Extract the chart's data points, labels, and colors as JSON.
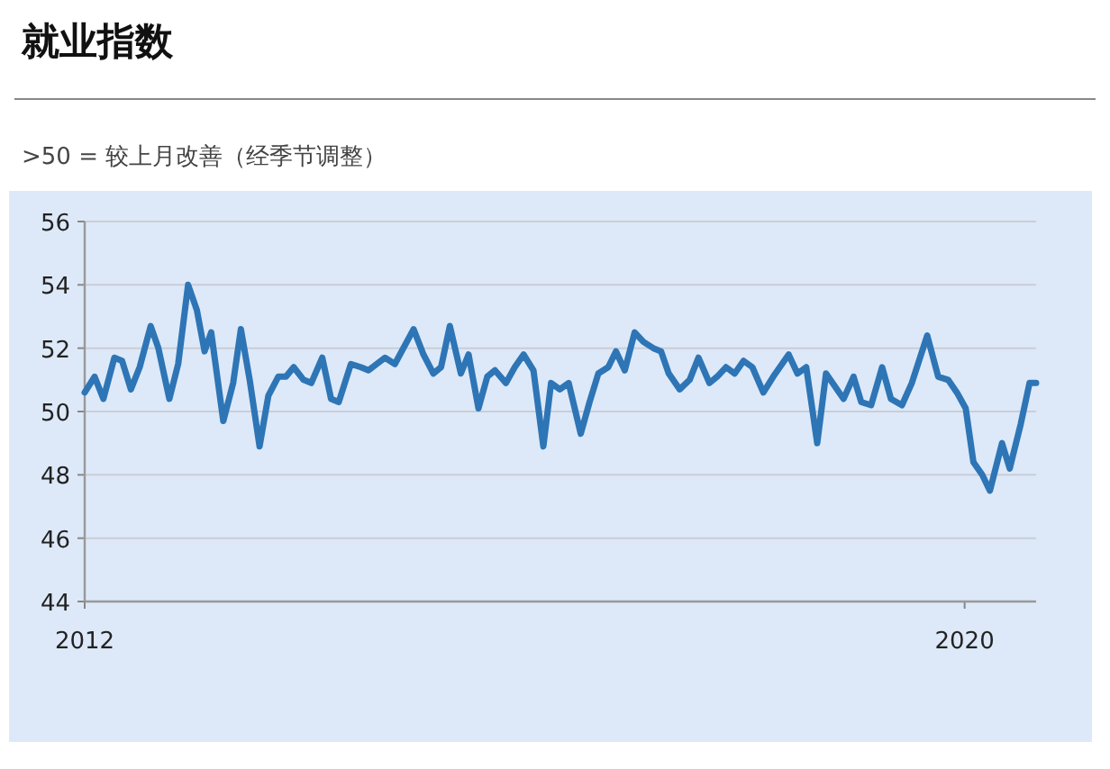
{
  "chart_data": {
    "type": "line",
    "title": "就业指数",
    "subtitle": ">50 = 较上月改善（经季节调整）",
    "x": [
      2012.0,
      2012.09,
      2012.17,
      2012.27,
      2012.34,
      2012.42,
      2012.5,
      2012.6,
      2012.67,
      2012.77,
      2012.85,
      2012.94,
      2013.02,
      2013.09,
      2013.15,
      2013.26,
      2013.35,
      2013.42,
      2013.5,
      2013.59,
      2013.67,
      2013.76,
      2013.83,
      2013.9,
      2013.99,
      2014.06,
      2014.16,
      2014.24,
      2014.31,
      2014.42,
      2014.51,
      2014.58,
      2014.73,
      2014.82,
      2014.99,
      2015.08,
      2015.17,
      2015.24,
      2015.32,
      2015.42,
      2015.49,
      2015.58,
      2015.66,
      2015.73,
      2015.83,
      2015.91,
      2015.99,
      2016.08,
      2016.17,
      2016.24,
      2016.32,
      2016.4,
      2016.51,
      2016.59,
      2016.67,
      2016.76,
      2016.83,
      2016.91,
      2017.0,
      2017.08,
      2017.17,
      2017.24,
      2017.31,
      2017.41,
      2017.5,
      2017.58,
      2017.68,
      2017.75,
      2017.83,
      2017.91,
      2017.99,
      2018.07,
      2018.17,
      2018.26,
      2018.4,
      2018.48,
      2018.56,
      2018.66,
      2018.74,
      2018.84,
      2018.9,
      2018.99,
      2019.06,
      2019.15,
      2019.25,
      2019.33,
      2019.43,
      2019.52,
      2019.66,
      2019.76,
      2019.85,
      2019.93,
      2020.01,
      2020.08,
      2020.16,
      2020.23,
      2020.34,
      2020.41,
      2020.51,
      2020.59,
      2020.65
    ],
    "values": [
      50.6,
      51.1,
      50.4,
      51.7,
      51.6,
      50.7,
      51.4,
      52.7,
      52.0,
      50.4,
      51.5,
      54.0,
      53.2,
      51.9,
      52.5,
      49.7,
      50.9,
      52.6,
      51.0,
      48.9,
      50.5,
      51.1,
      51.1,
      51.4,
      51.0,
      50.9,
      51.7,
      50.4,
      50.3,
      51.5,
      51.4,
      51.3,
      51.7,
      51.5,
      52.6,
      51.8,
      51.2,
      51.4,
      52.7,
      51.2,
      51.8,
      50.1,
      51.1,
      51.3,
      50.9,
      51.4,
      51.8,
      51.3,
      48.9,
      50.9,
      50.7,
      50.9,
      49.3,
      50.3,
      51.2,
      51.4,
      51.9,
      51.3,
      52.5,
      52.2,
      52.0,
      51.9,
      51.2,
      50.7,
      51.0,
      51.7,
      50.9,
      51.1,
      51.4,
      51.2,
      51.6,
      51.4,
      50.6,
      51.1,
      51.8,
      51.2,
      51.4,
      49.0,
      51.2,
      50.7,
      50.4,
      51.1,
      50.3,
      50.2,
      51.4,
      50.4,
      50.2,
      50.9,
      52.4,
      51.1,
      51.0,
      50.6,
      50.1,
      48.4,
      48.0,
      47.5,
      49.0,
      48.2,
      49.6,
      50.9,
      50.9
    ],
    "color": "#2e75b6",
    "xlim": [
      2012,
      2020.65
    ],
    "xticks": [
      2012,
      2020
    ],
    "ylim": [
      44,
      56
    ],
    "yticks": [
      44,
      46,
      48,
      50,
      52,
      54,
      56
    ],
    "grid": "y"
  }
}
